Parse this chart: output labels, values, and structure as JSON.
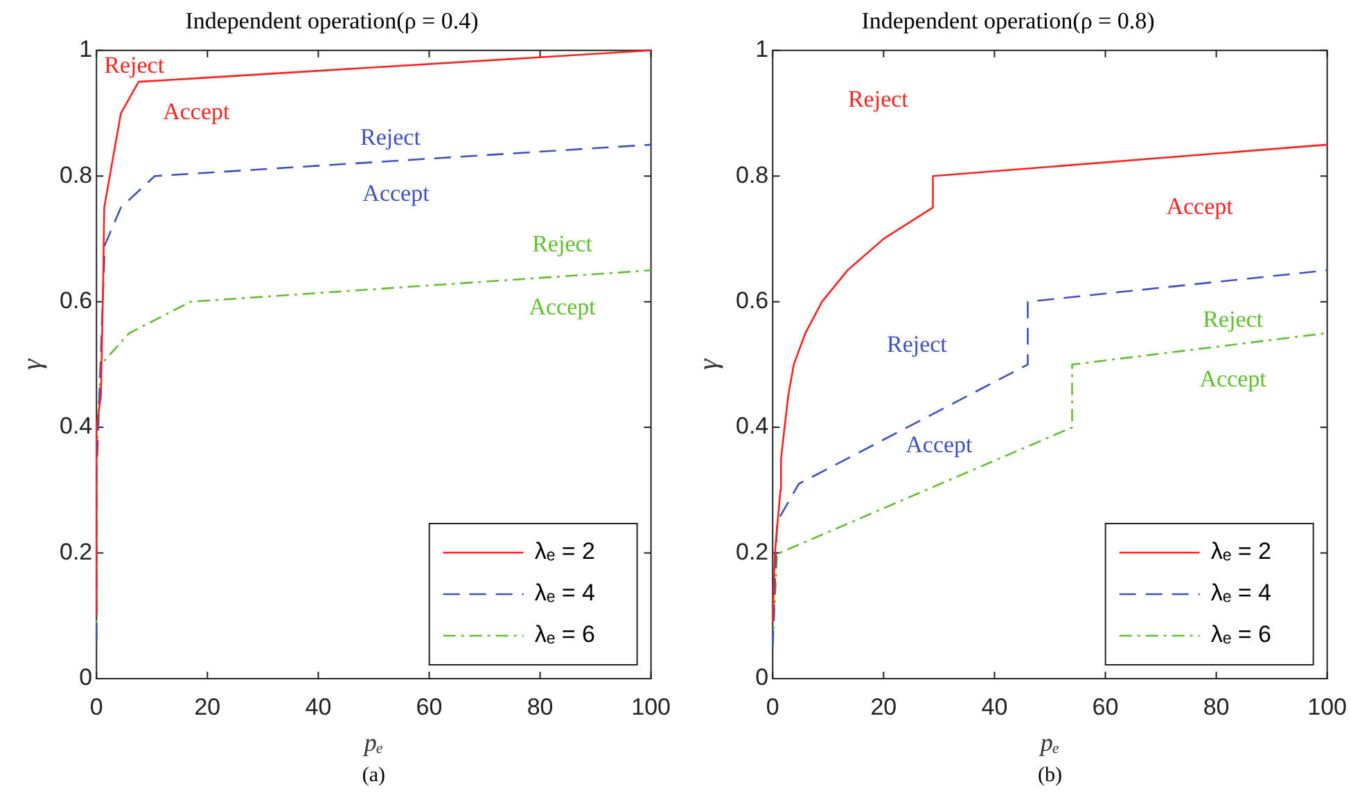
{
  "chart_data": [
    {
      "type": "line",
      "title": "Independent operation(ρ = 0.4)",
      "xlabel": "pₑ",
      "ylabel": "γ",
      "xlim": [
        0,
        100
      ],
      "xticks": [
        0,
        20,
        40,
        60,
        80,
        100
      ],
      "ylim": [
        0,
        1
      ],
      "yticks": [
        0,
        0.2,
        0.4,
        0.6,
        0.8,
        1
      ],
      "grid": false,
      "legend": "bottom right",
      "marker": "none",
      "series": [
        {
          "name": "λₑ = 2",
          "color": "#ff2020",
          "line_style": "solid",
          "x": [
            0,
            0,
            0.8,
            1.2,
            1.4,
            4.4,
            7.6,
            100
          ],
          "values": [
            0.1,
            0.4,
            0.45,
            0.63,
            0.75,
            0.9,
            0.95,
            1.0
          ]
        },
        {
          "name": "λₑ = 4",
          "color": "#4050c0",
          "line_style": "dashed",
          "x": [
            0,
            0,
            0.8,
            1.5,
            4.4,
            10.5,
            100
          ],
          "values": [
            0.06,
            0.32,
            0.52,
            0.69,
            0.75,
            0.8,
            0.85
          ]
        },
        {
          "name": "λₑ = 6",
          "color": "#60c030",
          "line_style": "dashdot",
          "x": [
            0,
            0,
            0.8,
            5.9,
            17,
            100
          ],
          "values": [
            0.06,
            0.35,
            0.5,
            0.55,
            0.6,
            0.65
          ]
        }
      ],
      "annotations": [
        "Reject",
        "Accept",
        "Reject",
        "Accept",
        "Reject",
        "Accept",
        "(a)"
      ]
    },
    {
      "type": "line",
      "title": "Independent operation(ρ = 0.8)",
      "xlabel": "pₑ",
      "ylabel": "γ",
      "xlim": [
        0,
        100
      ],
      "xticks": [
        0,
        20,
        40,
        60,
        80,
        100
      ],
      "ylim": [
        0,
        1
      ],
      "yticks": [
        0,
        0.2,
        0.4,
        0.6,
        0.8,
        1
      ],
      "grid": false,
      "legend": "bottom right",
      "marker": "none",
      "series": [
        {
          "name": "λₑ = 2",
          "color": "#ff2020",
          "line_style": "solid",
          "x": [
            0,
            0.4,
            1.4,
            1.5,
            2.8,
            3.8,
            5.9,
            8.9,
            13.5,
            20,
            28.9,
            28.9,
            100
          ],
          "values": [
            0.09,
            0.2,
            0.3,
            0.35,
            0.45,
            0.5,
            0.55,
            0.6,
            0.65,
            0.7,
            0.75,
            0.8,
            0.85
          ]
        },
        {
          "name": "λₑ = 4",
          "color": "#4050c0",
          "line_style": "dashed",
          "x": [
            0,
            0.8,
            4.7,
            46,
            46,
            100
          ],
          "values": [
            0.05,
            0.25,
            0.31,
            0.5,
            0.6,
            0.65
          ]
        },
        {
          "name": "λₑ = 6",
          "color": "#60c030",
          "line_style": "dashdot",
          "x": [
            0,
            0.8,
            1.2,
            54,
            54,
            100
          ],
          "values": [
            0.05,
            0.2,
            0.2,
            0.4,
            0.5,
            0.55
          ]
        }
      ],
      "annotations": [
        "Reject",
        "Accept",
        "Reject",
        "Accept",
        "Reject",
        "Accept",
        "(b)"
      ]
    }
  ]
}
